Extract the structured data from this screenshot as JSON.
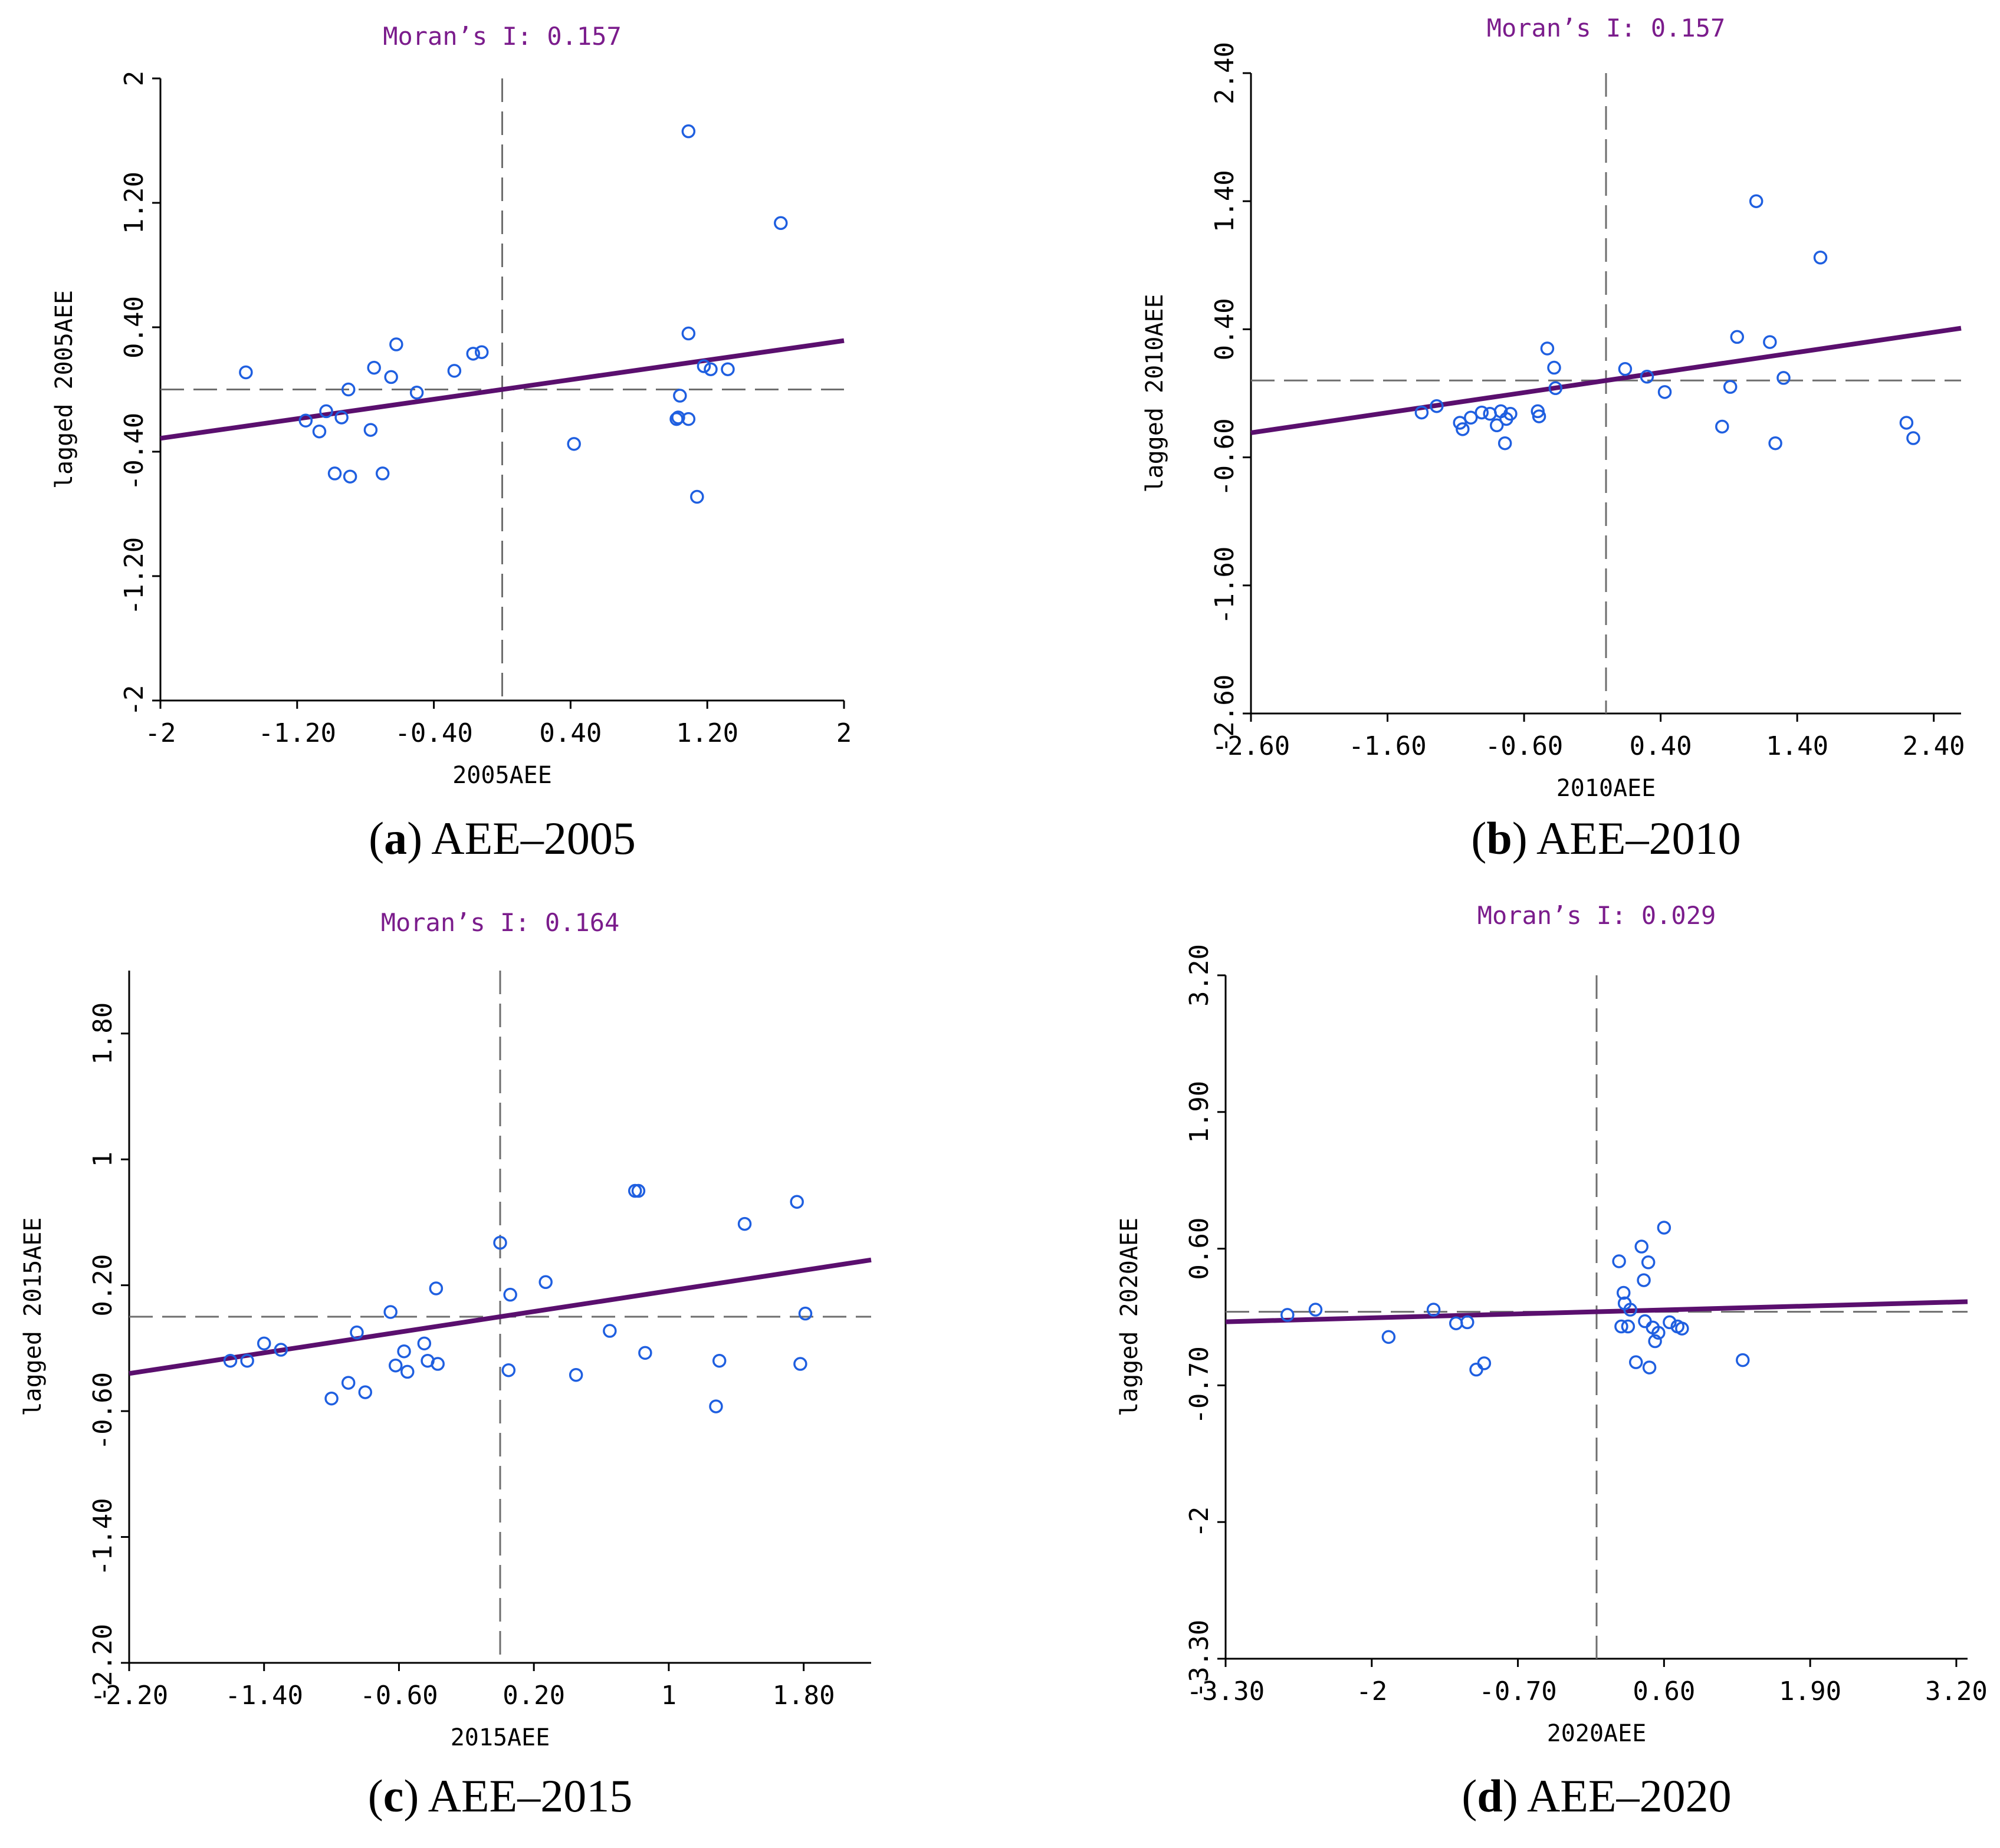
{
  "colors": {
    "points": "#1f5fe0",
    "regression": "#5a0f6e",
    "title": "#7b1c8c",
    "reference": "#6e6e6e"
  },
  "chart_data": [
    {
      "type": "scatter",
      "id": "a",
      "title": "Moran’s I: 0.157",
      "xlabel": "2005AEE",
      "ylabel": "lagged 2005AEE",
      "caption_letter": "a",
      "caption_text": "AEE–2005",
      "xlim": [
        -2,
        2
      ],
      "ylim": [
        -2,
        2
      ],
      "xticks": [
        -2,
        -1.2,
        -0.4,
        0.4,
        1.2,
        2
      ],
      "xtick_labels": [
        "-2",
        "-1.20",
        "-0.40",
        "0.40",
        "1.20",
        "2"
      ],
      "yticks": [
        -2,
        -1.2,
        -0.4,
        0.4,
        1.2,
        2
      ],
      "ytick_labels": [
        "-2",
        "-1.20",
        "-0.40",
        "0.40",
        "1.20",
        "2"
      ],
      "ref_x": 0,
      "ref_y": 0,
      "regression": {
        "slope": 0.157,
        "intercept": 0
      },
      "points": [
        [
          -1.5,
          0.11
        ],
        [
          -1.15,
          -0.2
        ],
        [
          -1.07,
          -0.27
        ],
        [
          -1.03,
          -0.14
        ],
        [
          -0.98,
          -0.54
        ],
        [
          -0.94,
          -0.18
        ],
        [
          -0.9,
          0.0
        ],
        [
          -0.89,
          -0.56
        ],
        [
          -0.77,
          -0.26
        ],
        [
          -0.75,
          0.14
        ],
        [
          -0.7,
          -0.54
        ],
        [
          -0.65,
          0.08
        ],
        [
          -0.62,
          0.29
        ],
        [
          -0.5,
          -0.02
        ],
        [
          -0.28,
          0.12
        ],
        [
          -0.17,
          0.23
        ],
        [
          -0.12,
          0.24
        ],
        [
          0.42,
          -0.35
        ],
        [
          1.02,
          -0.19
        ],
        [
          1.03,
          -0.18
        ],
        [
          1.04,
          -0.04
        ],
        [
          1.09,
          -0.19
        ],
        [
          1.09,
          0.36
        ],
        [
          1.09,
          1.66
        ],
        [
          1.14,
          -0.69
        ],
        [
          1.18,
          0.15
        ],
        [
          1.22,
          0.13
        ],
        [
          1.32,
          0.13
        ],
        [
          1.63,
          1.07
        ]
      ]
    },
    {
      "type": "scatter",
      "id": "b",
      "title": "Moran’s I: 0.157",
      "xlabel": "2010AEE",
      "ylabel": "lagged 2010AEE",
      "caption_letter": "b",
      "caption_text": "AEE–2010",
      "xlim": [
        -2.6,
        2.6
      ],
      "ylim": [
        -2.6,
        2.4
      ],
      "xticks": [
        -2.6,
        -1.6,
        -0.6,
        0.4,
        1.4,
        2.4
      ],
      "xtick_labels": [
        "-2.60",
        "-1.60",
        "-0.60",
        "0.40",
        "1.40",
        "2.40"
      ],
      "yticks": [
        -2.6,
        -1.6,
        -0.6,
        0.4,
        1.4,
        2.4
      ],
      "ytick_labels": [
        "-2.60",
        "-1.60",
        "-0.60",
        "0.40",
        "1.40",
        "2.40"
      ],
      "ref_x": 0,
      "ref_y": 0,
      "regression": {
        "slope": 0.157,
        "intercept": 0
      },
      "points": [
        [
          -1.35,
          -0.25
        ],
        [
          -1.24,
          -0.2
        ],
        [
          -1.07,
          -0.33
        ],
        [
          -1.05,
          -0.38
        ],
        [
          -0.99,
          -0.29
        ],
        [
          -0.91,
          -0.25
        ],
        [
          -0.85,
          -0.26
        ],
        [
          -0.8,
          -0.35
        ],
        [
          -0.77,
          -0.24
        ],
        [
          -0.74,
          -0.49
        ],
        [
          -0.73,
          -0.3
        ],
        [
          -0.7,
          -0.26
        ],
        [
          -0.5,
          -0.24
        ],
        [
          -0.49,
          -0.28
        ],
        [
          -0.43,
          0.25
        ],
        [
          -0.38,
          0.1
        ],
        [
          -0.37,
          -0.06
        ],
        [
          0.14,
          0.09
        ],
        [
          0.3,
          0.03
        ],
        [
          0.43,
          -0.09
        ],
        [
          0.85,
          -0.36
        ],
        [
          0.91,
          -0.05
        ],
        [
          0.96,
          0.34
        ],
        [
          1.1,
          1.4
        ],
        [
          1.2,
          0.3
        ],
        [
          1.24,
          -0.49
        ],
        [
          1.3,
          0.02
        ],
        [
          1.57,
          0.96
        ],
        [
          2.2,
          -0.33
        ],
        [
          2.25,
          -0.45
        ]
      ]
    },
    {
      "type": "scatter",
      "id": "c",
      "title": "Moran’s I: 0.164",
      "xlabel": "2015AEE",
      "ylabel": "lagged 2015AEE",
      "caption_letter": "c",
      "caption_text": "AEE–2015",
      "xlim": [
        -2.2,
        2.2
      ],
      "ylim": [
        -2.2,
        2.2
      ],
      "xticks": [
        -2.2,
        -1.4,
        -0.6,
        0.2,
        1,
        1.8
      ],
      "xtick_labels": [
        "-2.20",
        "-1.40",
        "-0.60",
        "0.20",
        "1",
        "1.80"
      ],
      "yticks": [
        -2.2,
        -1.4,
        -0.6,
        0.2,
        1,
        1.8
      ],
      "ytick_labels": [
        "-2.20",
        "-1.40",
        "-0.60",
        "0.20",
        "1",
        "1.80"
      ],
      "ref_x": 0,
      "ref_y": 0,
      "regression": {
        "slope": 0.164,
        "intercept": 0
      },
      "points": [
        [
          -1.6,
          -0.28
        ],
        [
          -1.5,
          -0.28
        ],
        [
          -1.4,
          -0.17
        ],
        [
          -1.3,
          -0.21
        ],
        [
          -1.0,
          -0.52
        ],
        [
          -0.9,
          -0.42
        ],
        [
          -0.85,
          -0.1
        ],
        [
          -0.8,
          -0.48
        ],
        [
          -0.65,
          0.03
        ],
        [
          -0.62,
          -0.31
        ],
        [
          -0.57,
          -0.22
        ],
        [
          -0.55,
          -0.35
        ],
        [
          -0.45,
          -0.17
        ],
        [
          -0.43,
          -0.28
        ],
        [
          -0.38,
          0.18
        ],
        [
          -0.37,
          -0.3
        ],
        [
          0.0,
          0.47
        ],
        [
          0.05,
          -0.34
        ],
        [
          0.06,
          0.14
        ],
        [
          0.27,
          0.22
        ],
        [
          0.45,
          -0.37
        ],
        [
          0.65,
          -0.09
        ],
        [
          0.8,
          0.8
        ],
        [
          0.82,
          0.8
        ],
        [
          0.86,
          -0.23
        ],
        [
          1.28,
          -0.57
        ],
        [
          1.3,
          -0.28
        ],
        [
          1.45,
          0.59
        ],
        [
          1.76,
          0.73
        ],
        [
          1.78,
          -0.3
        ],
        [
          1.81,
          0.02
        ]
      ]
    },
    {
      "type": "scatter",
      "id": "d",
      "title": "Moran’s I: 0.029",
      "xlabel": "2020AEE",
      "ylabel": "lagged 2020AEE",
      "caption_letter": "d",
      "caption_text": "AEE–2020",
      "xlim": [
        -3.3,
        3.3
      ],
      "ylim": [
        -3.3,
        3.2
      ],
      "xticks": [
        -3.3,
        -2,
        -0.7,
        0.6,
        1.9,
        3.2
      ],
      "xtick_labels": [
        "-3.30",
        "-2",
        "-0.70",
        "0.60",
        "1.90",
        "3.20"
      ],
      "yticks": [
        -3.3,
        -2,
        -0.7,
        0.6,
        1.9,
        3.2
      ],
      "ytick_labels": [
        "-3.30",
        "-2",
        "-0.70",
        "0.60",
        "1.90",
        "3.20"
      ],
      "ref_x": 0,
      "ref_y": 0,
      "regression": {
        "slope": 0.029,
        "intercept": 0
      },
      "points": [
        [
          -2.75,
          -0.03
        ],
        [
          -2.5,
          0.02
        ],
        [
          -1.85,
          -0.24
        ],
        [
          -1.45,
          0.02
        ],
        [
          -1.25,
          -0.11
        ],
        [
          -1.07,
          -0.55
        ],
        [
          -1.0,
          -0.49
        ],
        [
          -1.15,
          -0.1
        ],
        [
          0.2,
          0.48
        ],
        [
          0.22,
          -0.14
        ],
        [
          0.24,
          0.18
        ],
        [
          0.25,
          0.08
        ],
        [
          0.28,
          -0.14
        ],
        [
          0.3,
          0.02
        ],
        [
          0.35,
          -0.48
        ],
        [
          0.4,
          0.62
        ],
        [
          0.42,
          0.3
        ],
        [
          0.43,
          -0.09
        ],
        [
          0.46,
          0.47
        ],
        [
          0.47,
          -0.53
        ],
        [
          0.5,
          -0.15
        ],
        [
          0.52,
          -0.28
        ],
        [
          0.55,
          -0.2
        ],
        [
          0.6,
          0.8
        ],
        [
          0.65,
          -0.1
        ],
        [
          0.72,
          -0.14
        ],
        [
          0.76,
          -0.16
        ],
        [
          1.3,
          -0.46
        ]
      ]
    }
  ]
}
